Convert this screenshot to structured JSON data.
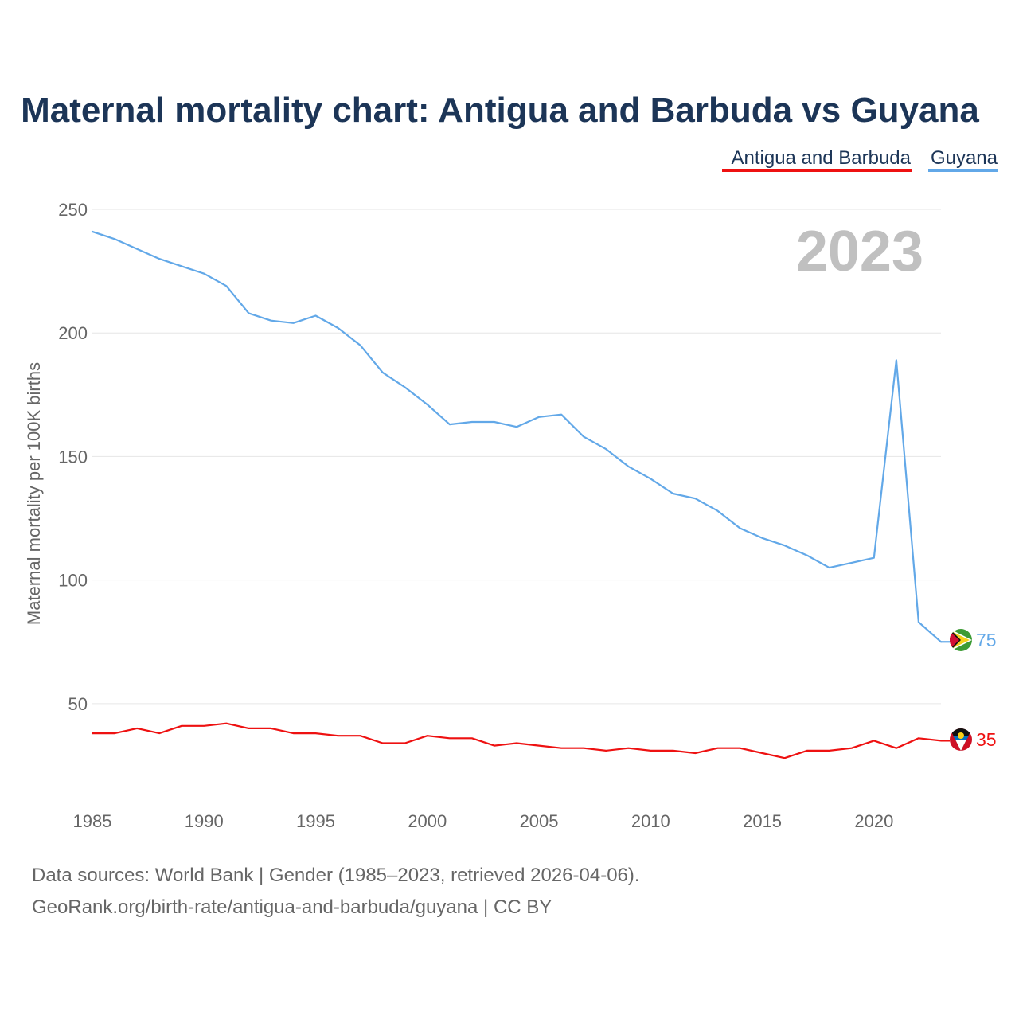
{
  "chart_data": {
    "type": "line",
    "title": "Maternal mortality chart: Antigua and Barbuda vs Guyana",
    "ylabel": "Maternal mortality per 100K births",
    "xlabel": "",
    "year_label": "2023",
    "xlim": [
      1985,
      2023
    ],
    "ylim": [
      20,
      250
    ],
    "y_ticks": [
      50,
      100,
      150,
      200,
      250
    ],
    "x_ticks": [
      1985,
      1990,
      1995,
      2000,
      2005,
      2010,
      2015,
      2020
    ],
    "x": [
      1985,
      1986,
      1987,
      1988,
      1989,
      1990,
      1991,
      1992,
      1993,
      1994,
      1995,
      1996,
      1997,
      1998,
      1999,
      2000,
      2001,
      2002,
      2003,
      2004,
      2005,
      2006,
      2007,
      2008,
      2009,
      2010,
      2011,
      2012,
      2013,
      2014,
      2015,
      2016,
      2017,
      2018,
      2019,
      2020,
      2021,
      2022,
      2023
    ],
    "series": [
      {
        "name": "Antigua and Barbuda",
        "color": "#ee1111",
        "end_label": "35",
        "values": [
          38,
          38,
          40,
          38,
          41,
          41,
          42,
          40,
          40,
          38,
          38,
          37,
          37,
          34,
          34,
          37,
          36,
          36,
          33,
          34,
          33,
          32,
          32,
          31,
          32,
          31,
          31,
          30,
          32,
          32,
          30,
          28,
          31,
          31,
          32,
          35,
          32,
          36,
          35
        ]
      },
      {
        "name": "Guyana",
        "color": "#62a8e8",
        "end_label": "75",
        "values": [
          241,
          238,
          234,
          230,
          227,
          224,
          219,
          208,
          205,
          204,
          207,
          202,
          195,
          184,
          178,
          171,
          163,
          164,
          164,
          162,
          166,
          167,
          158,
          153,
          146,
          141,
          135,
          133,
          128,
          121,
          117,
          114,
          110,
          105,
          107,
          109,
          189,
          83,
          75
        ]
      }
    ],
    "legend_position": "top-right"
  },
  "footer": {
    "line1": "Data sources: World Bank | Gender (1985–2023, retrieved 2026-04-06).",
    "line2": "GeoRank.org/birth-rate/antigua-and-barbuda/guyana | CC BY"
  }
}
